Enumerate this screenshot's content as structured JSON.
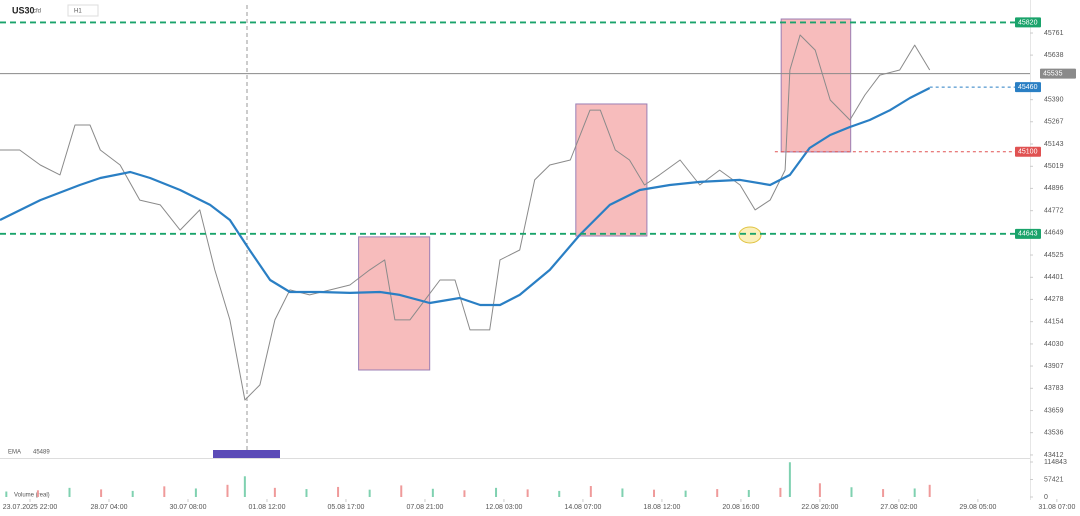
{
  "chart_data": [
    {
      "type": "line",
      "title": "US30",
      "subtitle": "cfd",
      "timeframe": "H1",
      "series": [
        {
          "name": "US30",
          "color": "#8a8a8a",
          "x": [
            -0.38,
            -0.13,
            0.13,
            0.38,
            0.57,
            0.76,
            0.89,
            1.14,
            1.39,
            1.65,
            1.9,
            2.15,
            2.34,
            2.53,
            2.72,
            2.91,
            3.1,
            3.29,
            3.54,
            3.8,
            4.05,
            4.3,
            4.49,
            4.62,
            4.81,
            5.0,
            5.19,
            5.38,
            5.57,
            5.82,
            5.95,
            6.2,
            6.39,
            6.58,
            6.84,
            7.09,
            7.22,
            7.41,
            7.59,
            7.78,
            7.97,
            8.23,
            8.48,
            8.73,
            8.99,
            9.18,
            9.37,
            9.56,
            9.62,
            9.75,
            9.94,
            10.13,
            10.38,
            10.57,
            10.76,
            11.01,
            11.2,
            11.39
          ],
          "values": [
            45110,
            45110,
            45026,
            44971,
            45249,
            45249,
            45110,
            45026,
            44831,
            44804,
            44664,
            44776,
            44442,
            44164,
            43718,
            43802,
            44164,
            44331,
            44303,
            44331,
            44358,
            44442,
            44498,
            44164,
            44164,
            44275,
            44386,
            44386,
            44108,
            44108,
            44498,
            44553,
            44943,
            45026,
            45054,
            45332,
            45332,
            45110,
            45054,
            44915,
            44971,
            45054,
            44915,
            44998,
            44915,
            44776,
            44831,
            44998,
            45555,
            45750,
            45666,
            45388,
            45277,
            45416,
            45527,
            45555,
            45694,
            45555
          ]
        },
        {
          "name": "EMA",
          "last": 45489,
          "color": "#2a7fc4",
          "x": [
            -0.38,
            0.13,
            0.63,
            0.89,
            1.27,
            1.52,
            1.9,
            2.28,
            2.53,
            2.78,
            3.04,
            3.29,
            3.67,
            4.05,
            4.43,
            4.68,
            5.06,
            5.44,
            5.7,
            5.95,
            6.2,
            6.58,
            6.96,
            7.34,
            7.72,
            8.1,
            8.48,
            8.99,
            9.37,
            9.62,
            9.87,
            10.13,
            10.38,
            10.63,
            10.89,
            11.14,
            11.39
          ],
          "values": [
            44720,
            44831,
            44915,
            44954,
            44987,
            44954,
            44887,
            44804,
            44720,
            44553,
            44386,
            44319,
            44319,
            44314,
            44319,
            44303,
            44258,
            44286,
            44247,
            44247,
            44303,
            44442,
            44637,
            44804,
            44887,
            44915,
            44932,
            44943,
            44915,
            44971,
            45121,
            45193,
            45238,
            45277,
            45332,
            45399,
            45455
          ]
        }
      ],
      "levels": [
        {
          "value": 45820,
          "color": "#1aa36b",
          "style": "dashed"
        },
        {
          "value": 44643,
          "color": "#1aa36b",
          "style": "dashed"
        },
        {
          "value": 45460,
          "color": "#2a7fc4",
          "style": "dotted",
          "from": 11.39
        },
        {
          "value": 45100,
          "color": "#e05252",
          "style": "dotted",
          "from": 9.43
        },
        {
          "value": 45535,
          "color": "#8a8a8a",
          "style": "solid"
        }
      ],
      "boxes": [
        {
          "x": [
            4.16,
            5.06
          ],
          "y": [
            43885,
            44626
          ],
          "color": "#f4a6a6"
        },
        {
          "x": [
            6.91,
            7.81
          ],
          "y": [
            44631,
            45366
          ],
          "color": "#f4a6a6"
        },
        {
          "x": [
            9.51,
            10.39
          ],
          "y": [
            45099,
            45839
          ],
          "color": "#f4a6a6"
        }
      ],
      "xlim": [
        -0.38,
        12.66
      ],
      "xticks": [
        {
          "value": 0,
          "label": "23.07.2025 22:00"
        },
        {
          "value": 1,
          "label": "28.07 04:00"
        },
        {
          "value": 2,
          "label": "30.07 08:00"
        },
        {
          "value": 3,
          "label": "01.08 12:00"
        },
        {
          "value": 4,
          "label": "05.08 17:00"
        },
        {
          "value": 5,
          "label": "07.08 21:00"
        },
        {
          "value": 6,
          "label": "12.08 03:00"
        },
        {
          "value": 7,
          "label": "14.08 07:00"
        },
        {
          "value": 8,
          "label": "18.08 12:00"
        },
        {
          "value": 9,
          "label": "20.08 16:00"
        },
        {
          "value": 10,
          "label": "22.08 20:00"
        },
        {
          "value": 11,
          "label": "27.08 02:00"
        },
        {
          "value": 12,
          "label": "29.08 05:00"
        },
        {
          "value": 13,
          "label": "31.08 07:00"
        }
      ],
      "ylim": [
        43395,
        45917
      ],
      "yticks": [
        43412,
        43536,
        43659,
        43783,
        43907,
        44030,
        44154,
        44278,
        44401,
        44525,
        44649,
        44772,
        44896,
        45019,
        45143,
        45267,
        45390,
        45638,
        45761
      ]
    },
    {
      "type": "bar",
      "title": "Volume (real)",
      "x": [
        -0.3,
        0.1,
        0.5,
        0.9,
        1.3,
        1.7,
        2.1,
        2.5,
        2.72,
        3.1,
        3.5,
        3.9,
        4.3,
        4.7,
        5.1,
        5.5,
        5.9,
        6.3,
        6.7,
        7.1,
        7.5,
        7.9,
        8.3,
        8.7,
        9.1,
        9.5,
        9.62,
        10.0,
        10.4,
        10.8,
        11.2,
        11.39
      ],
      "values": [
        18000,
        22000,
        30000,
        25000,
        20000,
        35000,
        28000,
        40000,
        68000,
        30000,
        26000,
        33000,
        24000,
        38000,
        27000,
        22000,
        30000,
        25000,
        20000,
        36000,
        28000,
        24000,
        21000,
        26000,
        23000,
        30000,
        114000,
        45000,
        32000,
        26000,
        28000,
        40000
      ],
      "colors": [
        "#7fd1b0",
        "#ef9a9a",
        "#7fd1b0",
        "#ef9a9a",
        "#7fd1b0",
        "#ef9a9a",
        "#7fd1b0",
        "#ef9a9a",
        "#7fd1b0",
        "#ef9a9a",
        "#7fd1b0",
        "#ef9a9a",
        "#7fd1b0",
        "#ef9a9a",
        "#7fd1b0",
        "#ef9a9a",
        "#7fd1b0",
        "#ef9a9a",
        "#7fd1b0",
        "#ef9a9a",
        "#7fd1b0",
        "#ef9a9a",
        "#7fd1b0",
        "#ef9a9a",
        "#7fd1b0",
        "#ef9a9a",
        "#7fd1b0",
        "#ef9a9a",
        "#7fd1b0",
        "#ef9a9a",
        "#7fd1b0",
        "#ef9a9a"
      ],
      "xlim": [
        -0.38,
        12.66
      ],
      "ylim": [
        0,
        121400
      ],
      "yticks": [
        0,
        57421,
        114843
      ]
    }
  ]
}
